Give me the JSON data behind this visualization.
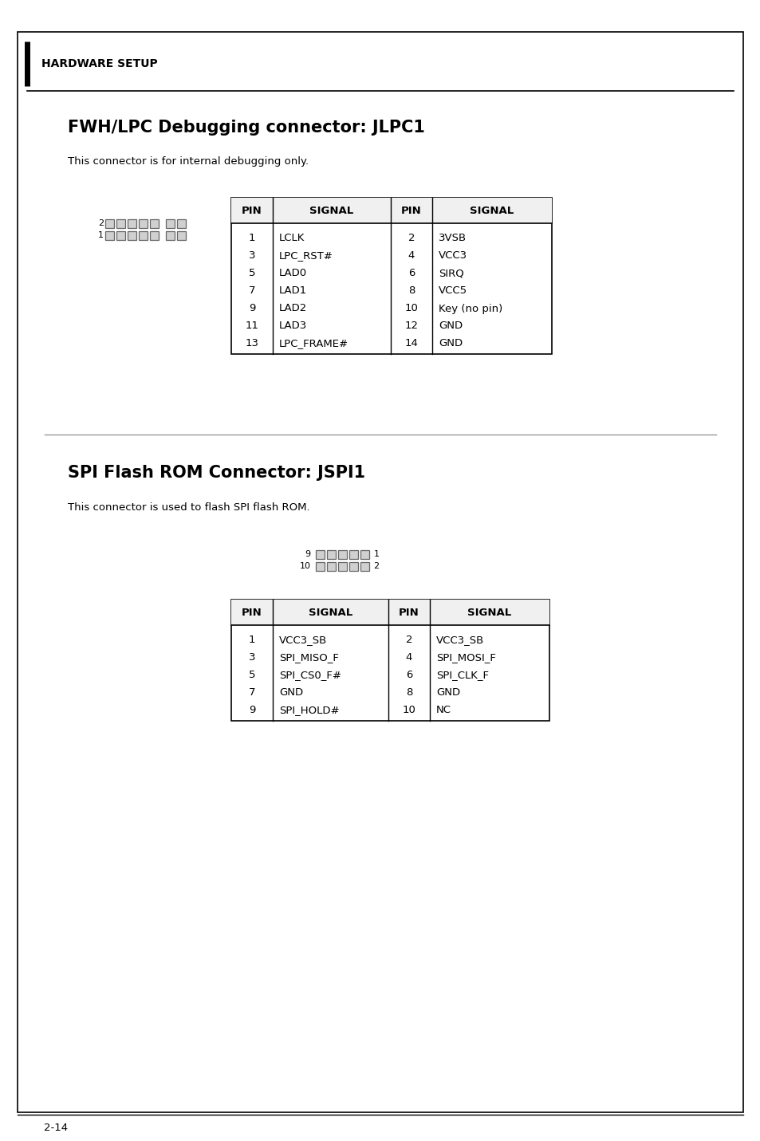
{
  "page_bg": "#ffffff",
  "header_text": "HARDWARE SETUP",
  "section1_title": "FWH/LPC Debugging connector: JLPC1",
  "section1_subtitle": "This connector is for internal debugging only.",
  "jlpc1_table_header": [
    "PIN",
    "SIGNAL",
    "PIN",
    "SIGNAL"
  ],
  "jlpc1_left_pins": [
    "1",
    "3",
    "5",
    "7",
    "9",
    "11",
    "13"
  ],
  "jlpc1_left_signals": [
    "LCLK",
    "LPC_RST#",
    "LAD0",
    "LAD1",
    "LAD2",
    "LAD3",
    "LPC_FRAME#"
  ],
  "jlpc1_right_pins": [
    "2",
    "4",
    "6",
    "8",
    "10",
    "12",
    "14"
  ],
  "jlpc1_right_signals": [
    "3VSB",
    "VCC3",
    "SIRQ",
    "VCC5",
    "Key (no pin)",
    "GND",
    "GND"
  ],
  "section2_title": "SPI Flash ROM Connector: JSPI1",
  "section2_subtitle": "This connector is used to flash SPI flash ROM.",
  "jspi1_table_header": [
    "PIN",
    "SIGNAL",
    "PIN",
    "SIGNAL"
  ],
  "jspi1_left_pins": [
    "1",
    "3",
    "5",
    "7",
    "9"
  ],
  "jspi1_left_signals": [
    "VCC3_SB",
    "SPI_MISO_F",
    "SPI_CS0_F#",
    "GND",
    "SPI_HOLD#"
  ],
  "jspi1_right_pins": [
    "2",
    "4",
    "6",
    "8",
    "10"
  ],
  "jspi1_right_signals": [
    "VCC3_SB",
    "SPI_MOSI_F",
    "SPI_CLK_F",
    "GND",
    "NC"
  ],
  "footer_text": "2-14"
}
